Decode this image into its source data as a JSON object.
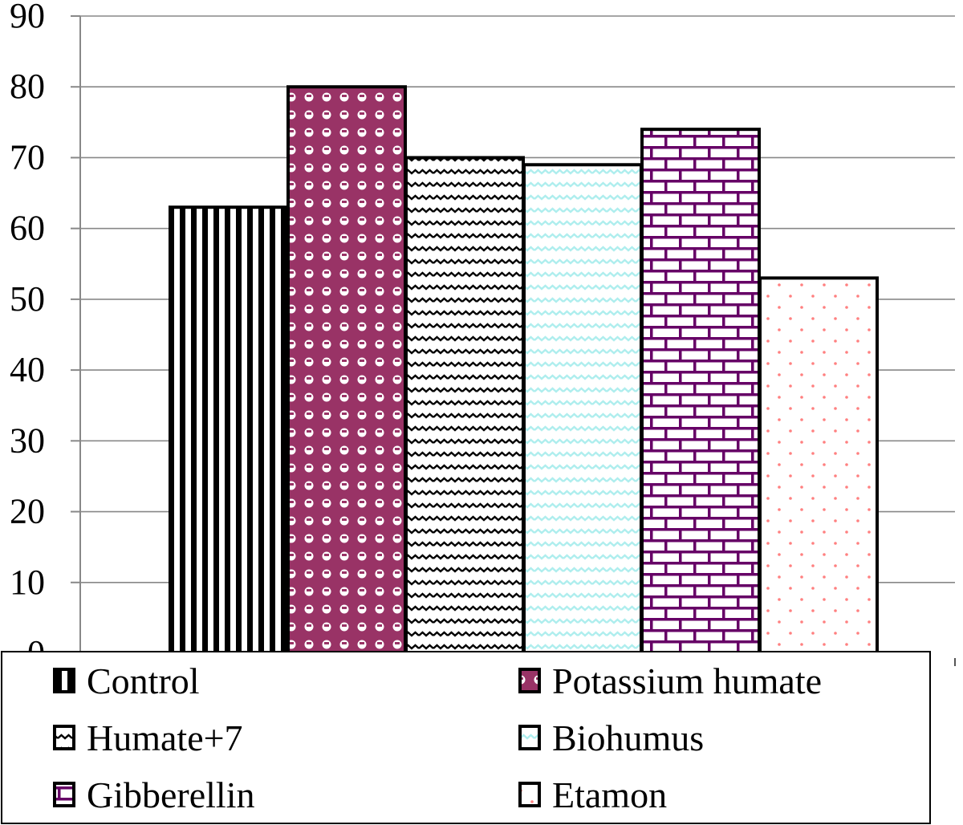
{
  "chart_data": {
    "type": "bar",
    "categories": [
      "Control",
      "Potassium humate",
      "Humate+7",
      "Biohumus",
      "Gibberellin",
      "Etamon"
    ],
    "values": [
      63,
      80,
      70,
      69,
      74,
      53
    ],
    "ylim": [
      0,
      90
    ],
    "y_ticks": [
      "0",
      "10",
      "20",
      "30",
      "40",
      "50",
      "60",
      "70",
      "80",
      "90"
    ],
    "grid": true,
    "legend": {
      "placement": "bottom",
      "entries": [
        "Control",
        "Potassium humate",
        "Humate+7",
        "Biohumus",
        "Gibberellin",
        "Etamon"
      ]
    },
    "bar_styles": [
      {
        "pattern": "vertical-stripes",
        "color": "#000000"
      },
      {
        "pattern": "dots-on-fill",
        "color": "#993366"
      },
      {
        "pattern": "zigzag",
        "color": "#000000"
      },
      {
        "pattern": "wave",
        "color": "#aeeeee"
      },
      {
        "pattern": "brick",
        "color": "#660066"
      },
      {
        "pattern": "sparse-dots",
        "color": "#ff8080"
      }
    ],
    "title": "",
    "xlabel": "",
    "ylabel": ""
  }
}
